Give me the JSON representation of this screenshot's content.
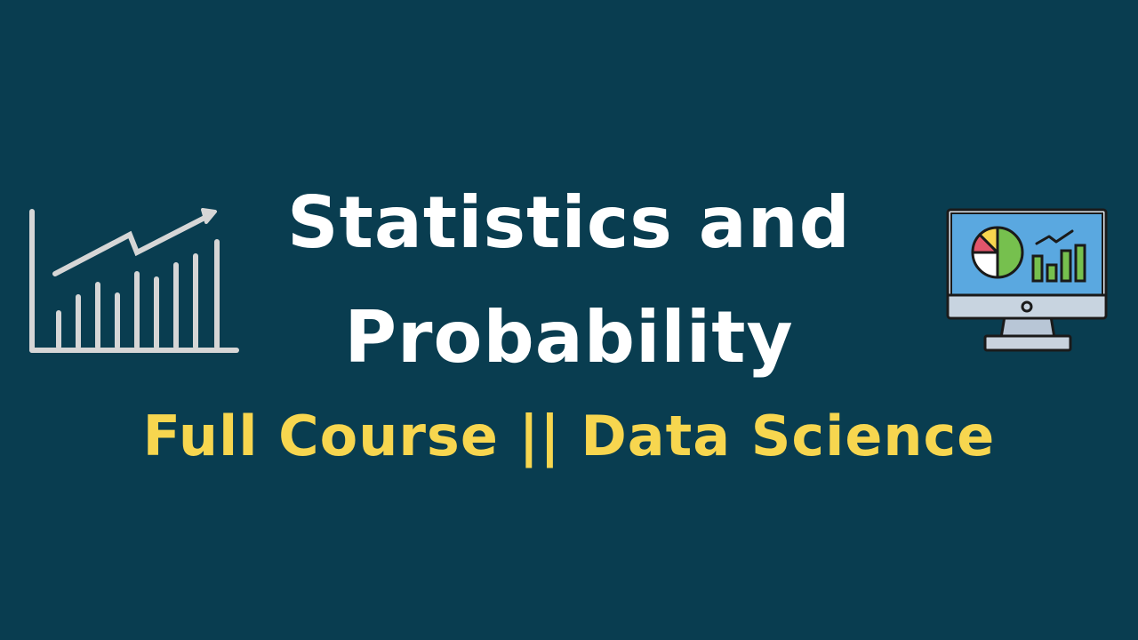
{
  "title": {
    "line1": "Statistics and",
    "line2": "Probability"
  },
  "subtitle": "Full Course || Data Science",
  "icons": {
    "left": "rising-bar-chart-icon",
    "right": "computer-monitor-dashboard-icon"
  },
  "colors": {
    "background": "#093d50",
    "title": "#ffffff",
    "subtitle": "#f7d64f",
    "line_art": "#d6d6d6",
    "monitor_screen": "#5aa8e0",
    "pie_red": "#e2556b",
    "pie_yellow": "#f7d64f",
    "pie_green": "#76c04e"
  }
}
